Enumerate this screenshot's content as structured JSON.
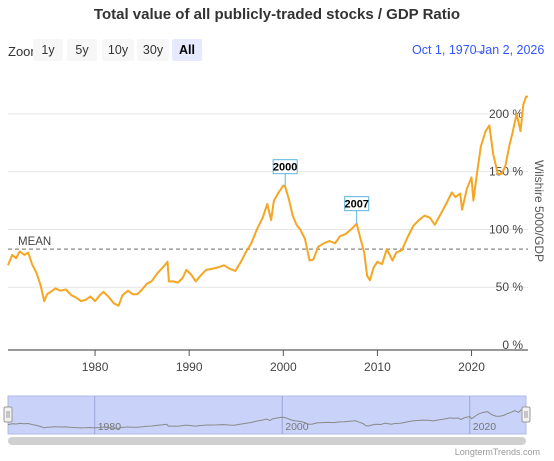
{
  "header": {
    "title": "Total value of all publicly-traded stocks / GDP Ratio"
  },
  "zoom": {
    "label": "Zoom",
    "buttons": [
      {
        "label": "1y",
        "active": false
      },
      {
        "label": "5y",
        "active": false
      },
      {
        "label": "10y",
        "active": false
      },
      {
        "label": "30y",
        "active": false
      },
      {
        "label": "All",
        "active": true
      }
    ]
  },
  "range": {
    "start": "Oct 1, 1970",
    "separator": "→",
    "end": "Jan 2, 2026"
  },
  "footer": {
    "source": "LongtermTrends.com"
  },
  "colors": {
    "line": "#f5a623",
    "mean": "#888888",
    "navigator_fill": "#c9d2f8",
    "navigator_border": "#b0b9e8",
    "grid": "#e6e6e6",
    "annotation_border": "#5ab4e0"
  },
  "chart_data": {
    "type": "line",
    "title": "Total value of all publicly-traded stocks / GDP Ratio",
    "ylabel": "Wilshire 5000/GDP",
    "xlabel": "",
    "ylim": [
      0,
      225
    ],
    "xlim": [
      1970.75,
      2026.0
    ],
    "y_ticks": [
      0,
      50,
      100,
      150,
      200
    ],
    "y_tick_labels": [
      "0 %",
      "50 %",
      "100 %",
      "150 %",
      "200 %"
    ],
    "x_ticks": [
      1980,
      1990,
      2000,
      2010,
      2020
    ],
    "x_tick_labels": [
      "1980",
      "1990",
      "2000",
      "2010",
      "2020"
    ],
    "grid": "horizontal",
    "mean": {
      "label": "MEAN",
      "value": 83
    },
    "annotations": [
      {
        "label": "2000",
        "x": 2000.2,
        "y": 137
      },
      {
        "label": "2007",
        "x": 2007.8,
        "y": 105
      }
    ],
    "navigator_ticks": [
      "1980",
      "2000",
      "2020"
    ],
    "series": [
      {
        "values": [
          [
            1970.75,
            69
          ],
          [
            1971.2,
            78
          ],
          [
            1971.6,
            75
          ],
          [
            1972.0,
            81
          ],
          [
            1972.5,
            78
          ],
          [
            1972.9,
            80
          ],
          [
            1973.3,
            70
          ],
          [
            1973.8,
            62
          ],
          [
            1974.2,
            52
          ],
          [
            1974.6,
            38
          ],
          [
            1974.9,
            44
          ],
          [
            1975.3,
            46
          ],
          [
            1975.8,
            49
          ],
          [
            1976.3,
            47
          ],
          [
            1976.9,
            48
          ],
          [
            1977.5,
            43
          ],
          [
            1978.0,
            41
          ],
          [
            1978.5,
            38
          ],
          [
            1979.0,
            39
          ],
          [
            1979.5,
            42
          ],
          [
            1980.0,
            38
          ],
          [
            1980.5,
            43
          ],
          [
            1980.9,
            46
          ],
          [
            1981.5,
            41
          ],
          [
            1982.0,
            36
          ],
          [
            1982.5,
            34
          ],
          [
            1982.9,
            43
          ],
          [
            1983.5,
            47
          ],
          [
            1984.0,
            44
          ],
          [
            1984.5,
            44
          ],
          [
            1985.0,
            48
          ],
          [
            1985.5,
            53
          ],
          [
            1986.0,
            55
          ],
          [
            1986.6,
            62
          ],
          [
            1987.3,
            68
          ],
          [
            1987.7,
            72
          ],
          [
            1987.85,
            55
          ],
          [
            1988.3,
            55
          ],
          [
            1988.8,
            54
          ],
          [
            1989.3,
            58
          ],
          [
            1989.7,
            65
          ],
          [
            1990.2,
            61
          ],
          [
            1990.7,
            55
          ],
          [
            1991.2,
            60
          ],
          [
            1991.8,
            65
          ],
          [
            1992.5,
            66
          ],
          [
            1993.0,
            67
          ],
          [
            1993.7,
            69
          ],
          [
            1994.3,
            66
          ],
          [
            1994.9,
            64
          ],
          [
            1995.5,
            72
          ],
          [
            1996.0,
            80
          ],
          [
            1996.6,
            88
          ],
          [
            1997.2,
            100
          ],
          [
            1997.8,
            110
          ],
          [
            1998.3,
            122
          ],
          [
            1998.7,
            108
          ],
          [
            1999.0,
            125
          ],
          [
            1999.5,
            132
          ],
          [
            2000.0,
            138
          ],
          [
            2000.2,
            137
          ],
          [
            2000.6,
            126
          ],
          [
            2001.0,
            112
          ],
          [
            2001.4,
            104
          ],
          [
            2001.8,
            100
          ],
          [
            2002.3,
            92
          ],
          [
            2002.8,
            73
          ],
          [
            2003.2,
            74
          ],
          [
            2003.7,
            85
          ],
          [
            2004.3,
            88
          ],
          [
            2004.9,
            90
          ],
          [
            2005.5,
            88
          ],
          [
            2006.0,
            94
          ],
          [
            2006.6,
            96
          ],
          [
            2007.2,
            100
          ],
          [
            2007.8,
            105
          ],
          [
            2008.2,
            92
          ],
          [
            2008.6,
            80
          ],
          [
            2008.9,
            60
          ],
          [
            2009.2,
            56
          ],
          [
            2009.6,
            67
          ],
          [
            2010.0,
            72
          ],
          [
            2010.5,
            70
          ],
          [
            2011.0,
            83
          ],
          [
            2011.6,
            73
          ],
          [
            2012.0,
            80
          ],
          [
            2012.6,
            82
          ],
          [
            2013.2,
            93
          ],
          [
            2013.8,
            103
          ],
          [
            2014.4,
            108
          ],
          [
            2015.0,
            112
          ],
          [
            2015.6,
            110
          ],
          [
            2016.1,
            104
          ],
          [
            2016.7,
            113
          ],
          [
            2017.3,
            122
          ],
          [
            2017.9,
            132
          ],
          [
            2018.3,
            128
          ],
          [
            2018.8,
            131
          ],
          [
            2019.0,
            117
          ],
          [
            2019.5,
            135
          ],
          [
            2020.0,
            145
          ],
          [
            2020.2,
            125
          ],
          [
            2020.6,
            150
          ],
          [
            2021.0,
            172
          ],
          [
            2021.5,
            185
          ],
          [
            2021.9,
            190
          ],
          [
            2022.3,
            165
          ],
          [
            2022.8,
            148
          ],
          [
            2023.2,
            148
          ],
          [
            2023.6,
            155
          ],
          [
            2024.0,
            172
          ],
          [
            2024.4,
            185
          ],
          [
            2024.8,
            200
          ],
          [
            2025.2,
            185
          ],
          [
            2025.5,
            208
          ],
          [
            2025.8,
            215
          ],
          [
            2026.0,
            215
          ]
        ]
      }
    ]
  }
}
